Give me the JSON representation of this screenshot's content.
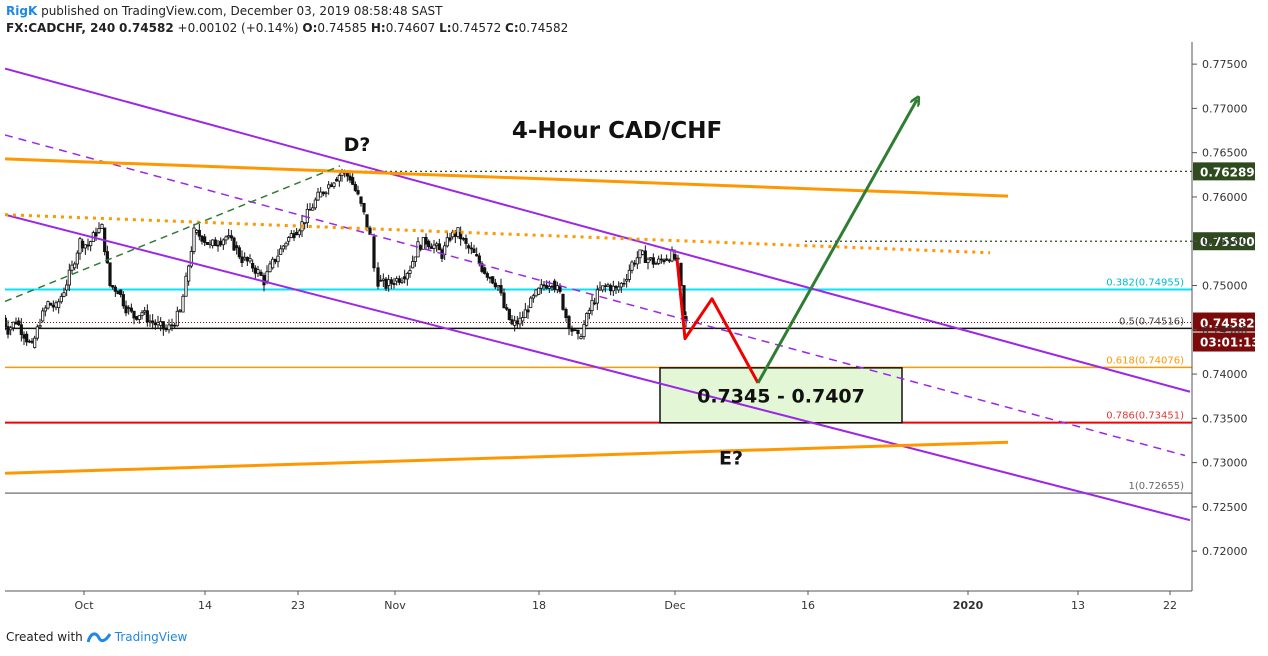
{
  "header": {
    "author": "RigK",
    "published_text": "published on TradingView.com, December 03, 2019 08:58:48 SAST",
    "symbol": "FX:CADCHF, 240",
    "last": "0.74582",
    "change": "+0.00102 (+0.14%)",
    "o_label": "O:",
    "o_value": "0.74585",
    "h_label": "H:",
    "h_value": "0.74607",
    "l_label": "L:",
    "l_value": "0.74572",
    "c_label": "C:",
    "c_value": "0.74582"
  },
  "footer": {
    "created_with": "Created with",
    "brand": "TradingView"
  },
  "colors": {
    "purple": "#9c27e8",
    "orange": "#ff9800",
    "green": "#2e7d32",
    "red": "#f00000",
    "cyan": "#00e5ff",
    "darkgreen": "#2e4a1e",
    "zone_fill": "#e3f7d6",
    "price_tag": "#7b0a0a"
  },
  "chart_data": {
    "type": "line",
    "title": "4-Hour CAD/CHF",
    "ylim": [
      0.7155,
      0.7775
    ],
    "x_tick_labels": [
      "Oct",
      "14",
      "23",
      "Nov",
      "18",
      "Dec",
      "16",
      "2020",
      "13",
      "22"
    ],
    "y_tick_labels": [
      "0.77500",
      "0.77000",
      "0.76500",
      "0.76000",
      "0.75500",
      "0.75000",
      "0.74500",
      "0.74000",
      "0.73500",
      "0.73000",
      "0.72500",
      "0.72000"
    ],
    "y_ticks": [
      0.775,
      0.77,
      0.765,
      0.76,
      0.755,
      0.75,
      0.745,
      0.74,
      0.735,
      0.73,
      0.725,
      0.72
    ],
    "price_path": [
      [
        0,
        0.747
      ],
      [
        8,
        0.745
      ],
      [
        16,
        0.746
      ],
      [
        24,
        0.7445
      ],
      [
        32,
        0.743
      ],
      [
        40,
        0.746
      ],
      [
        48,
        0.748
      ],
      [
        56,
        0.7475
      ],
      [
        64,
        0.7495
      ],
      [
        72,
        0.752
      ],
      [
        80,
        0.755
      ],
      [
        88,
        0.7545
      ],
      [
        96,
        0.756
      ],
      [
        102,
        0.7565
      ],
      [
        110,
        0.75
      ],
      [
        118,
        0.7495
      ],
      [
        126,
        0.7475
      ],
      [
        134,
        0.7465
      ],
      [
        142,
        0.747
      ],
      [
        150,
        0.746
      ],
      [
        158,
        0.7455
      ],
      [
        166,
        0.745
      ],
      [
        172,
        0.7455
      ],
      [
        180,
        0.747
      ],
      [
        186,
        0.7505
      ],
      [
        194,
        0.756
      ],
      [
        202,
        0.7555
      ],
      [
        210,
        0.7545
      ],
      [
        218,
        0.755
      ],
      [
        226,
        0.7555
      ],
      [
        234,
        0.7545
      ],
      [
        242,
        0.753
      ],
      [
        250,
        0.7525
      ],
      [
        258,
        0.7515
      ],
      [
        264,
        0.7505
      ],
      [
        270,
        0.752
      ],
      [
        278,
        0.7535
      ],
      [
        286,
        0.755
      ],
      [
        294,
        0.756
      ],
      [
        302,
        0.757
      ],
      [
        310,
        0.7585
      ],
      [
        318,
        0.76
      ],
      [
        326,
        0.761
      ],
      [
        334,
        0.762
      ],
      [
        342,
        0.7628
      ],
      [
        350,
        0.7622
      ],
      [
        358,
        0.76
      ],
      [
        364,
        0.758
      ],
      [
        370,
        0.7555
      ],
      [
        374,
        0.752
      ],
      [
        378,
        0.7505
      ],
      [
        386,
        0.75
      ],
      [
        394,
        0.7505
      ],
      [
        402,
        0.751
      ],
      [
        410,
        0.752
      ],
      [
        418,
        0.7545
      ],
      [
        426,
        0.755
      ],
      [
        434,
        0.7545
      ],
      [
        442,
        0.7535
      ],
      [
        450,
        0.7555
      ],
      [
        458,
        0.756
      ],
      [
        466,
        0.7545
      ],
      [
        474,
        0.7535
      ],
      [
        482,
        0.752
      ],
      [
        490,
        0.751
      ],
      [
        498,
        0.75
      ],
      [
        504,
        0.7475
      ],
      [
        512,
        0.7455
      ],
      [
        520,
        0.746
      ],
      [
        528,
        0.7475
      ],
      [
        536,
        0.749
      ],
      [
        544,
        0.75
      ],
      [
        552,
        0.7505
      ],
      [
        560,
        0.749
      ],
      [
        566,
        0.7465
      ],
      [
        572,
        0.745
      ],
      [
        578,
        0.744
      ],
      [
        584,
        0.7455
      ],
      [
        592,
        0.748
      ],
      [
        600,
        0.7495
      ],
      [
        608,
        0.75
      ],
      [
        616,
        0.7495
      ],
      [
        624,
        0.7505
      ],
      [
        632,
        0.7525
      ],
      [
        640,
        0.7535
      ],
      [
        648,
        0.753
      ],
      [
        656,
        0.7525
      ],
      [
        664,
        0.753
      ],
      [
        672,
        0.7535
      ],
      [
        678,
        0.7525
      ],
      [
        684,
        0.7465
      ],
      [
        686,
        0.7458
      ]
    ],
    "series": [
      {
        "kind": "channel_upper",
        "points": [
          [
            5,
            0.7745
          ],
          [
            1190,
            0.738
          ]
        ]
      },
      {
        "kind": "channel_mid",
        "points": [
          [
            5,
            0.767
          ],
          [
            1185,
            0.7308
          ]
        ]
      },
      {
        "kind": "channel_lower",
        "points": [
          [
            5,
            0.758
          ],
          [
            1190,
            0.7235
          ]
        ]
      },
      {
        "kind": "triangle_top",
        "points": [
          [
            5,
            0.7643
          ],
          [
            1008,
            0.7601
          ]
        ]
      },
      {
        "kind": "triangle_bottom",
        "points": [
          [
            5,
            0.7288
          ],
          [
            1008,
            0.7323
          ]
        ]
      },
      {
        "kind": "dotted_orange",
        "points": [
          [
            5,
            0.758
          ],
          [
            990,
            0.7537
          ]
        ]
      },
      {
        "kind": "ab_dashed",
        "points": [
          [
            5,
            0.7482
          ],
          [
            340,
            0.7635
          ]
        ]
      },
      {
        "kind": "projection_red",
        "points": [
          [
            677,
            0.753
          ],
          [
            685,
            0.744
          ],
          [
            712,
            0.7485
          ],
          [
            758,
            0.739
          ]
        ]
      },
      {
        "kind": "projection_green",
        "points": [
          [
            758,
            0.739
          ],
          [
            917,
            0.771
          ]
        ]
      }
    ],
    "horizontal_levels": [
      {
        "value": 0.74955,
        "label": "0.382(0.74955)",
        "kind": "fib_cyan"
      },
      {
        "value": 0.74516,
        "label": "0.5(0.74516)",
        "kind": "fib_black"
      },
      {
        "value": 0.74076,
        "label": "0.618(0.74076)",
        "kind": "fib_orange"
      },
      {
        "value": 0.73451,
        "label": "0.786(0.73451)",
        "kind": "fib_red"
      },
      {
        "value": 0.72655,
        "label": "1(0.72655)",
        "kind": "fib_gray"
      }
    ],
    "dotted_levels": [
      {
        "value": 0.76289,
        "label": "0.76289",
        "x_start": 345
      },
      {
        "value": 0.755,
        "label": "0.75500",
        "x_start": 805
      }
    ],
    "current_price": {
      "value": 0.74582,
      "label": "0.74582",
      "countdown": "03:01:13"
    },
    "zone": {
      "label": "0.7345 - 0.7407",
      "low": 0.7345,
      "high": 0.7407
    },
    "annotations": [
      {
        "text": "D?",
        "x": 357,
        "y": 0.7652
      },
      {
        "text": "E?",
        "x": 731,
        "y": 0.7298
      }
    ]
  }
}
